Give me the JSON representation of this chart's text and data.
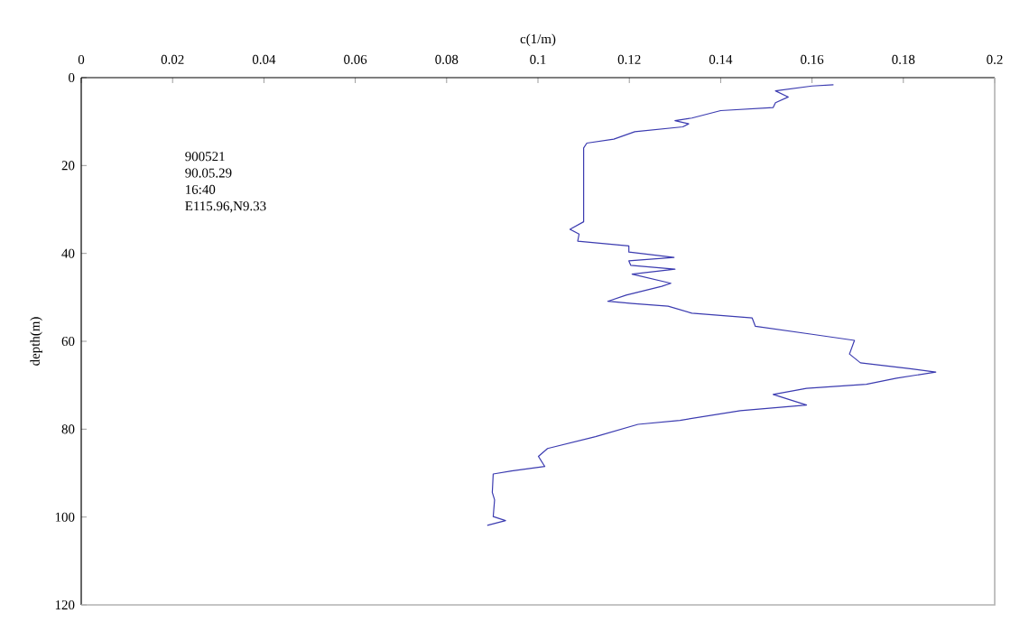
{
  "chart_data": {
    "type": "line",
    "xlabel": "c(1/m)",
    "ylabel": "depth(m)",
    "annotations": [
      "900521",
      "90.05.29",
      "16:40",
      "E115.96,N9.33"
    ],
    "xlim": [
      0,
      0.2
    ],
    "xticks": [
      0,
      0.02,
      0.04,
      0.06,
      0.08,
      0.1,
      0.12,
      0.14,
      0.16,
      0.18,
      0.2
    ],
    "ylim": [
      120,
      0
    ],
    "yticks": [
      0,
      20,
      40,
      60,
      80,
      100,
      120
    ],
    "marker": "none",
    "line_style": "solid",
    "series": [
      {
        "color": "#3b3bb0",
        "x": [
          0.1647,
          0.16,
          0.152,
          0.1548,
          0.152,
          0.1515,
          0.14,
          0.1337,
          0.13,
          0.133,
          0.1317,
          0.1212,
          0.1166,
          0.1107,
          0.11,
          0.11,
          0.107,
          0.109,
          0.1087,
          0.1199,
          0.1199,
          0.1298,
          0.1199,
          0.1203,
          0.13,
          0.1206,
          0.1291,
          0.1271,
          0.1193,
          0.1153,
          0.1206,
          0.1285,
          0.1337,
          0.1469,
          0.1476,
          0.16,
          0.1693,
          0.1682,
          0.1706,
          0.1811,
          0.1871,
          0.1785,
          0.1719,
          0.1588,
          0.1515,
          0.1588,
          0.1443,
          0.1311,
          0.1219,
          0.1126,
          0.1021,
          0.1001,
          0.1015,
          0.0942,
          0.0902,
          0.09,
          0.0905,
          0.0902,
          0.0929,
          0.0889
        ],
        "values": [
          1.6,
          1.9,
          3.0,
          4.4,
          5.7,
          6.8,
          7.5,
          9.2,
          9.8,
          10.5,
          11.2,
          12.3,
          14,
          14.9,
          16,
          32.8,
          34.5,
          35.6,
          37.2,
          38.3,
          39.7,
          40.9,
          41.7,
          42.7,
          43.6,
          44.7,
          46.8,
          47.5,
          49.5,
          50.9,
          51.4,
          52,
          53.6,
          54.7,
          56.6,
          58.4,
          59.8,
          62.9,
          64.9,
          66.2,
          67.0,
          68.4,
          69.8,
          70.7,
          72.1,
          74.5,
          75.8,
          78,
          78.9,
          81.7,
          84.4,
          86.2,
          88.5,
          89.5,
          90.2,
          94.4,
          96.1,
          99.9,
          100.8,
          101.9
        ]
      }
    ]
  }
}
